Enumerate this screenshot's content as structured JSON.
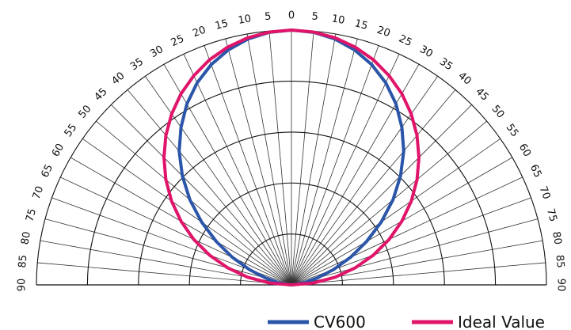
{
  "chart_data": {
    "type": "polar",
    "angle_ticks_left": [
      "0",
      "5",
      "10",
      "15",
      "20",
      "25",
      "30",
      "35",
      "40",
      "45",
      "50",
      "55",
      "60",
      "65",
      "70",
      "75",
      "80",
      "85",
      "90"
    ],
    "angle_ticks_right": [
      "0",
      "5",
      "10",
      "15",
      "20",
      "25",
      "30",
      "35",
      "40",
      "45",
      "50",
      "55",
      "60",
      "65",
      "70",
      "75",
      "80",
      "85",
      "90"
    ],
    "angle_step_deg": 5,
    "angle_range_deg": [
      -90,
      90
    ],
    "radial_rings": [
      0.2,
      0.4,
      0.6,
      0.8,
      1.0
    ],
    "grid": true,
    "legend_position": "bottom-right",
    "series": [
      {
        "name": "CV600",
        "color": "#2b55a8",
        "angles": [
          0,
          5,
          10,
          15,
          20,
          25,
          30,
          35,
          40,
          45,
          50,
          55,
          60,
          65,
          70,
          75,
          80,
          85,
          90
        ],
        "values": [
          1.0,
          0.995,
          0.98,
          0.955,
          0.92,
          0.875,
          0.82,
          0.755,
          0.685,
          0.605,
          0.52,
          0.43,
          0.34,
          0.255,
          0.175,
          0.105,
          0.05,
          0.015,
          0.0
        ]
      },
      {
        "name": "Ideal Value",
        "color": "#e0156a",
        "angles": [
          0,
          5,
          10,
          15,
          20,
          25,
          30,
          35,
          40,
          45,
          50,
          55,
          60,
          65,
          70,
          75,
          80,
          85,
          90
        ],
        "values": [
          1.0,
          0.996,
          0.985,
          0.966,
          0.94,
          0.906,
          0.866,
          0.819,
          0.766,
          0.707,
          0.643,
          0.574,
          0.5,
          0.423,
          0.342,
          0.259,
          0.174,
          0.087,
          0.0
        ]
      }
    ]
  }
}
